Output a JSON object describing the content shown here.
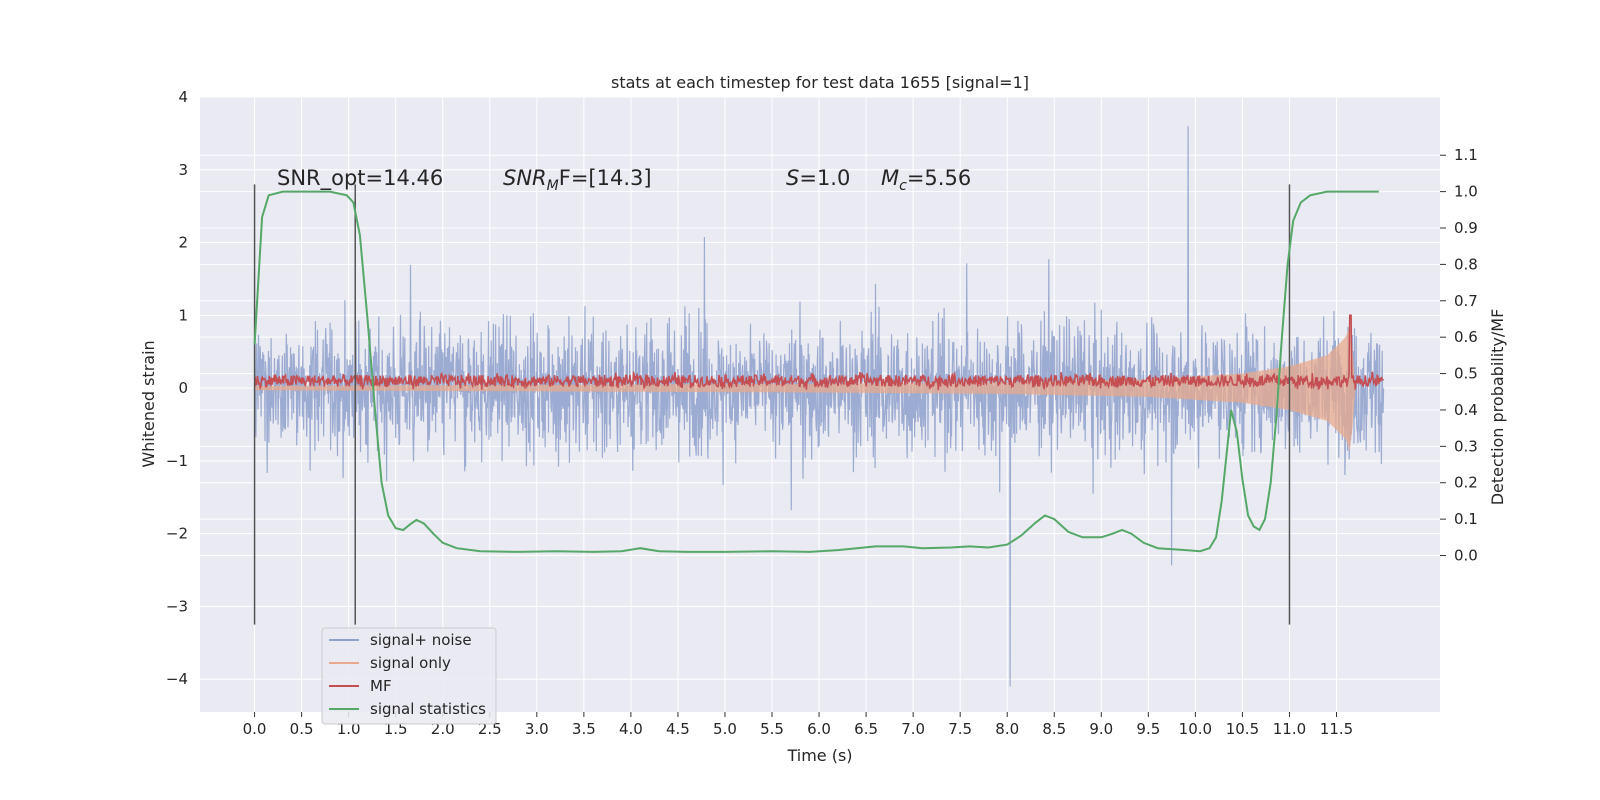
{
  "chart_data": {
    "type": "line",
    "title": "stats at each timestep for test data 1655 [signal=1]",
    "xlabel": "Time (s)",
    "ylabel": "Whitened strain",
    "ylabel_right": "Detection probability/MF",
    "xlim": [
      -0.58,
      12.6
    ],
    "ylim": [
      -4.45,
      4.0
    ],
    "ylim_right": [
      -0.43,
      1.26
    ],
    "x_ticks": [
      0.0,
      0.5,
      1.0,
      1.5,
      2.0,
      2.5,
      3.0,
      3.5,
      4.0,
      4.5,
      5.0,
      5.5,
      6.0,
      6.5,
      7.0,
      7.5,
      8.0,
      8.5,
      9.0,
      9.5,
      10.0,
      10.5,
      11.0,
      11.5
    ],
    "x_tick_labels": [
      "0.0",
      "0.5",
      "1.0",
      "1.5",
      "2.0",
      "2.5",
      "3.0",
      "3.5",
      "4.0",
      "4.5",
      "5.0",
      "5.5",
      "6.0",
      "6.5",
      "7.0",
      "7.5",
      "8.0",
      "8.5",
      "9.0",
      "9.5",
      "10.0",
      "10.5",
      "11.0",
      "11.5"
    ],
    "y_ticks": [
      -4,
      -3,
      -2,
      -1,
      0,
      1,
      2,
      3,
      4
    ],
    "y_tick_labels": [
      "−4",
      "−3",
      "−2",
      "−1",
      "0",
      "1",
      "2",
      "3",
      "4"
    ],
    "y_right_ticks": [
      0.0,
      0.1,
      0.2,
      0.3,
      0.4,
      0.5,
      0.6,
      0.7,
      0.8,
      0.9,
      1.0,
      1.1
    ],
    "y_right_tick_labels": [
      "0.0",
      "0.1",
      "0.2",
      "0.3",
      "0.4",
      "0.5",
      "0.6",
      "0.7",
      "0.8",
      "0.9",
      "1.0",
      "1.1"
    ],
    "grid": true,
    "legend_position": "lower-left",
    "signal_noise_range": {
      "t_start": 0.0,
      "t_end": 12.0,
      "typical_abs_max": 1.6,
      "max_peak": 3.6,
      "min_peak": -4.1
    },
    "signal_only_envelope": [
      [
        0.0,
        0.03
      ],
      [
        6.0,
        0.06
      ],
      [
        8.0,
        0.08
      ],
      [
        9.5,
        0.12
      ],
      [
        10.5,
        0.2
      ],
      [
        11.0,
        0.3
      ],
      [
        11.4,
        0.45
      ],
      [
        11.6,
        0.7
      ],
      [
        11.65,
        0.9
      ],
      [
        11.7,
        0.0
      ]
    ],
    "mf_range": {
      "center": 0.1,
      "halfwidth": 0.08,
      "spike_t": 11.65,
      "spike_y": 1.0
    },
    "signal_statistics": [
      [
        0.0,
        0.58
      ],
      [
        0.08,
        0.93
      ],
      [
        0.15,
        0.99
      ],
      [
        0.3,
        1.0
      ],
      [
        0.5,
        1.0
      ],
      [
        0.8,
        1.0
      ],
      [
        0.98,
        0.99
      ],
      [
        1.05,
        0.97
      ],
      [
        1.12,
        0.88
      ],
      [
        1.2,
        0.65
      ],
      [
        1.28,
        0.4
      ],
      [
        1.35,
        0.2
      ],
      [
        1.42,
        0.11
      ],
      [
        1.5,
        0.075
      ],
      [
        1.58,
        0.07
      ],
      [
        1.65,
        0.085
      ],
      [
        1.72,
        0.098
      ],
      [
        1.8,
        0.088
      ],
      [
        1.9,
        0.06
      ],
      [
        2.0,
        0.035
      ],
      [
        2.15,
        0.02
      ],
      [
        2.4,
        0.012
      ],
      [
        2.8,
        0.01
      ],
      [
        3.2,
        0.012
      ],
      [
        3.6,
        0.01
      ],
      [
        3.9,
        0.012
      ],
      [
        4.1,
        0.02
      ],
      [
        4.3,
        0.012
      ],
      [
        4.6,
        0.01
      ],
      [
        5.0,
        0.01
      ],
      [
        5.5,
        0.012
      ],
      [
        5.9,
        0.01
      ],
      [
        6.2,
        0.015
      ],
      [
        6.4,
        0.02
      ],
      [
        6.6,
        0.025
      ],
      [
        6.9,
        0.025
      ],
      [
        7.1,
        0.02
      ],
      [
        7.4,
        0.022
      ],
      [
        7.6,
        0.025
      ],
      [
        7.8,
        0.022
      ],
      [
        8.0,
        0.03
      ],
      [
        8.15,
        0.055
      ],
      [
        8.3,
        0.09
      ],
      [
        8.4,
        0.11
      ],
      [
        8.5,
        0.1
      ],
      [
        8.65,
        0.065
      ],
      [
        8.8,
        0.05
      ],
      [
        9.0,
        0.05
      ],
      [
        9.12,
        0.06
      ],
      [
        9.22,
        0.07
      ],
      [
        9.32,
        0.06
      ],
      [
        9.45,
        0.035
      ],
      [
        9.6,
        0.02
      ],
      [
        9.9,
        0.015
      ],
      [
        10.05,
        0.012
      ],
      [
        10.15,
        0.02
      ],
      [
        10.22,
        0.05
      ],
      [
        10.28,
        0.15
      ],
      [
        10.34,
        0.3
      ],
      [
        10.38,
        0.4
      ],
      [
        10.44,
        0.34
      ],
      [
        10.5,
        0.21
      ],
      [
        10.56,
        0.11
      ],
      [
        10.62,
        0.08
      ],
      [
        10.68,
        0.07
      ],
      [
        10.74,
        0.1
      ],
      [
        10.8,
        0.2
      ],
      [
        10.86,
        0.38
      ],
      [
        10.92,
        0.6
      ],
      [
        10.98,
        0.8
      ],
      [
        11.04,
        0.92
      ],
      [
        11.12,
        0.97
      ],
      [
        11.22,
        0.99
      ],
      [
        11.4,
        1.0
      ],
      [
        11.95,
        1.0
      ]
    ],
    "vertical_markers": [
      {
        "x": 0.0,
        "y_top": 2.8,
        "y_bottom": -3.25
      },
      {
        "x": 1.07,
        "y_top": 2.8,
        "y_bottom": -3.25
      },
      {
        "x": 11.0,
        "y_top": 2.8,
        "y_bottom": -3.25
      }
    ],
    "annotations": [
      {
        "kind": "plain",
        "text": "SNR_opt=14.46"
      },
      {
        "kind": "snrmf",
        "base": "SNR",
        "sub": "M",
        "after": "F=[14.3]"
      },
      {
        "kind": "italic_var",
        "var": "S",
        "after": "=1.0"
      },
      {
        "kind": "mc",
        "var": "M",
        "sub": "c",
        "after": "=5.56"
      }
    ],
    "series": [
      {
        "name": "signal+ noise",
        "color": "#8da0cb",
        "kind": "noise"
      },
      {
        "name": "signal only",
        "color": "#e8a98c",
        "kind": "signal"
      },
      {
        "name": "MF",
        "color": "#c44e52",
        "kind": "mf"
      },
      {
        "name": "signal statistics",
        "color": "#55a868",
        "kind": "stat"
      }
    ],
    "colors": {
      "plot_bg": "#eaeaf2",
      "grid": "#ffffff",
      "noise": "#8da0cb",
      "signal_only": "#e8a98c",
      "mf": "#c44e52",
      "stat": "#55a868",
      "marker": "#555555"
    }
  }
}
